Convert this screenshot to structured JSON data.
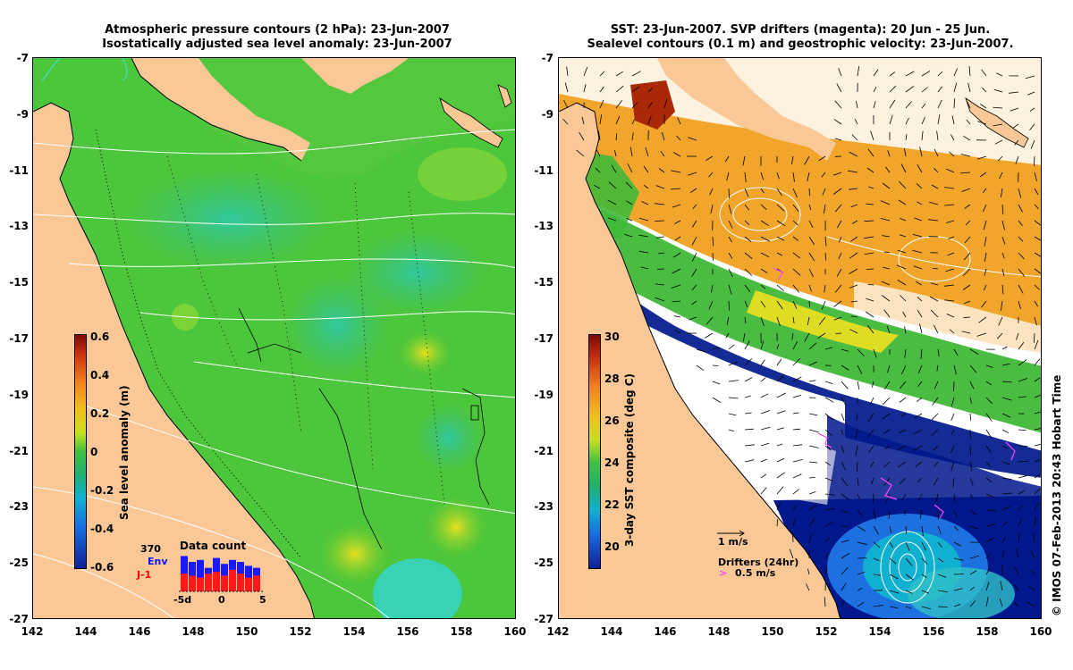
{
  "left_panel": {
    "title_line1": "Atmospheric pressure contours (2 hPa): 23-Jun-2007",
    "title_line2": "Isostatically adjusted sea level anomaly: 23-Jun-2007",
    "colorbar": {
      "label": "Sea level anomaly (m)",
      "ticks": [
        "0.6",
        "0.4",
        "0.2",
        "0",
        "-0.2",
        "-0.4",
        "-0.6"
      ]
    },
    "data_count": {
      "title": "Data count",
      "total": "370",
      "env_label": "Env",
      "j1_label": "J-1",
      "xticks": [
        "-5d",
        "0",
        "5"
      ],
      "env_values": [
        0.9,
        0.75,
        0.8,
        0.6,
        0.85,
        0.7,
        0.8,
        0.75,
        0.65,
        0.6
      ],
      "j1_values": [
        0.45,
        0.4,
        0.35,
        0.45,
        0.5,
        0.4,
        0.55,
        0.45,
        0.35,
        0.4
      ]
    }
  },
  "right_panel": {
    "title_line1": "SST: 23-Jun-2007. SVP drifters (magenta): 20 Jun - 25 Jun.",
    "title_line2": "Sealevel contours (0.1 m) and geostrophic velocity: 23-Jun-2007.",
    "colorbar": {
      "label": "3-day SST composite (deg C)",
      "ticks": [
        "30",
        "28",
        "26",
        "24",
        "22",
        "20"
      ]
    },
    "velocity_key": "1 m/s",
    "drifters_key": "Drifters (24hr)",
    "drifters_speed": "0.5 m/s"
  },
  "axes": {
    "lat_ticks": [
      "-7",
      "-9",
      "-11",
      "-13",
      "-15",
      "-17",
      "-19",
      "-21",
      "-23",
      "-25",
      "-27"
    ],
    "lon_ticks": [
      "142",
      "144",
      "146",
      "148",
      "150",
      "152",
      "154",
      "156",
      "158",
      "160"
    ]
  },
  "credit": "© IMOS 07-Feb-2013 20:43 Hobart Time",
  "colors": {
    "land": "#f9c896",
    "sea_green": "#4cc63a",
    "sst_orange": "#f0a020",
    "sst_blue": "#00188c",
    "drifter_magenta": "#ff44ff"
  }
}
